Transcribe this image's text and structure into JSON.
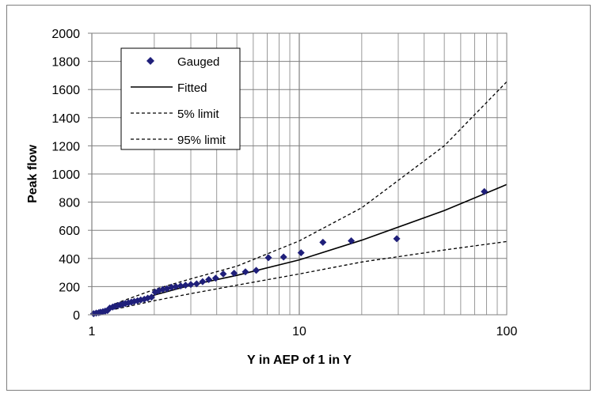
{
  "chart_data": {
    "type": "scatter",
    "xlabel": "Y in AEP of 1 in Y",
    "ylabel": "Peak flow",
    "xscale": "log",
    "xlim": [
      1,
      100
    ],
    "ylim": [
      0,
      2000
    ],
    "x_ticks": [
      "1",
      "10",
      "100"
    ],
    "y_ticks": [
      "0",
      "200",
      "400",
      "600",
      "800",
      "1000",
      "1200",
      "1400",
      "1600",
      "1800",
      "2000"
    ],
    "grid": "on",
    "legend_position": "top-left",
    "series": [
      {
        "name": "Gauged",
        "style": "markers",
        "marker": "diamond",
        "color": "#1f1f7a",
        "x": [
          1.02,
          1.05,
          1.08,
          1.1,
          1.13,
          1.16,
          1.19,
          1.22,
          1.26,
          1.29,
          1.33,
          1.37,
          1.41,
          1.45,
          1.5,
          1.55,
          1.6,
          1.66,
          1.72,
          1.79,
          1.86,
          1.94,
          2.02,
          2.1,
          2.2,
          2.3,
          2.42,
          2.54,
          2.68,
          2.83,
          3.0,
          3.2,
          3.42,
          3.66,
          3.95,
          4.3,
          4.85,
          5.5,
          6.2,
          7.1,
          8.4,
          10.2,
          13.0,
          17.8,
          29.5,
          78.0
        ],
        "y": [
          8,
          12,
          15,
          18,
          22,
          26,
          30,
          48,
          55,
          60,
          65,
          70,
          75,
          80,
          85,
          90,
          95,
          100,
          105,
          110,
          118,
          125,
          160,
          170,
          180,
          185,
          195,
          200,
          205,
          210,
          215,
          220,
          235,
          250,
          260,
          290,
          295,
          305,
          315,
          405,
          410,
          440,
          515,
          525,
          540,
          875
        ]
      },
      {
        "name": "Fitted",
        "style": "solid",
        "color": "#000000",
        "x": [
          1,
          1.3,
          2,
          3,
          5,
          10,
          20,
          50,
          100
        ],
        "y": [
          0,
          50,
          140,
          210,
          280,
          390,
          530,
          740,
          925
        ]
      },
      {
        "name": "5% limit",
        "style": "dashed",
        "color": "#000000",
        "x": [
          1.3,
          2,
          3,
          5,
          10,
          20,
          50,
          100
        ],
        "y": [
          80,
          180,
          255,
          345,
          525,
          760,
          1200,
          1655
        ]
      },
      {
        "name": "95% limit",
        "style": "dashed",
        "color": "#000000",
        "x": [
          1.3,
          2,
          3,
          5,
          10,
          20,
          50,
          100
        ],
        "y": [
          40,
          100,
          150,
          210,
          290,
          375,
          460,
          520
        ]
      }
    ]
  }
}
